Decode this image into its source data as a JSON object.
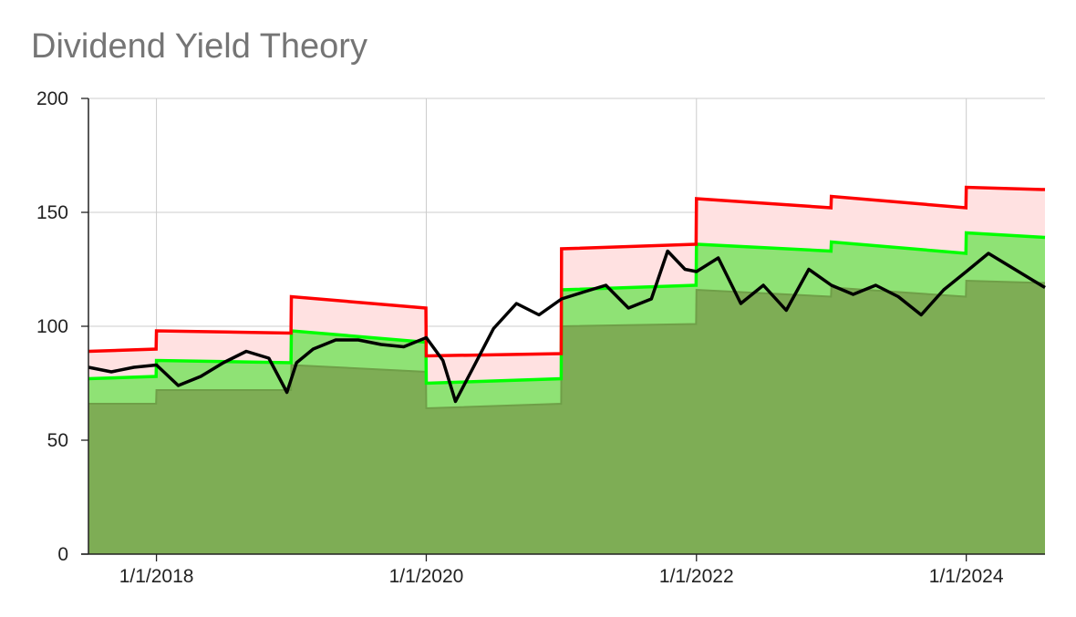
{
  "chart_data": {
    "type": "area",
    "title": "Dividend Yield Theory",
    "xlabel": "",
    "ylabel": "",
    "ylim": [
      0,
      200
    ],
    "y_ticks": [
      0,
      50,
      100,
      150,
      200
    ],
    "x_range": [
      "2017-07-01",
      "2024-08-01"
    ],
    "x_ticks": [
      {
        "date": "2018-01-01",
        "label": "1/1/2018"
      },
      {
        "date": "2020-01-01",
        "label": "1/1/2020"
      },
      {
        "date": "2022-01-01",
        "label": "1/1/2022"
      },
      {
        "date": "2024-01-01",
        "label": "1/1/2024"
      }
    ],
    "grid": true,
    "colors": {
      "overvalued_line": "#ff0000",
      "overvalued_fill": "#ffe1e1",
      "fair_line": "#00ff00",
      "fair_fill": "#8fe275",
      "undervalued_fill": "#7ead55",
      "undervalued_line": "#6f9f48",
      "price_line": "#000000",
      "grid": "#cccccc"
    },
    "series": [
      {
        "key": "overvalued",
        "x": [
          "2017-07-01",
          "2017-12-31",
          "2018-01-01",
          "2018-12-31",
          "2019-01-01",
          "2019-12-31",
          "2020-01-01",
          "2020-12-31",
          "2021-01-01",
          "2021-12-31",
          "2022-01-01",
          "2022-12-31",
          "2023-01-01",
          "2023-12-31",
          "2024-01-01",
          "2024-08-01"
        ],
        "values": [
          89,
          90,
          98,
          97,
          113,
          108,
          87,
          88,
          134,
          136,
          156,
          152,
          157,
          152,
          161,
          160
        ]
      },
      {
        "key": "fair",
        "x": [
          "2017-07-01",
          "2017-12-31",
          "2018-01-01",
          "2018-12-31",
          "2019-01-01",
          "2019-12-31",
          "2020-01-01",
          "2020-12-31",
          "2021-01-01",
          "2021-12-31",
          "2022-01-01",
          "2022-12-31",
          "2023-01-01",
          "2023-12-31",
          "2024-01-01",
          "2024-08-01"
        ],
        "values": [
          77,
          78,
          85,
          84,
          98,
          93,
          75,
          77,
          116,
          118,
          136,
          133,
          137,
          132,
          141,
          139
        ]
      },
      {
        "key": "undervalued",
        "x": [
          "2017-07-01",
          "2017-12-31",
          "2018-01-01",
          "2018-12-31",
          "2019-01-01",
          "2019-12-31",
          "2020-01-01",
          "2020-12-31",
          "2021-01-01",
          "2021-12-31",
          "2022-01-01",
          "2022-12-31",
          "2023-01-01",
          "2023-12-31",
          "2024-01-01",
          "2024-08-01"
        ],
        "values": [
          66,
          66,
          72,
          72,
          83,
          80,
          64,
          66,
          100,
          101,
          116,
          113,
          117,
          113,
          120,
          119
        ]
      },
      {
        "key": "price",
        "x": [
          "2017-07-01",
          "2017-09-01",
          "2017-11-01",
          "2018-01-01",
          "2018-03-01",
          "2018-05-01",
          "2018-07-01",
          "2018-09-01",
          "2018-11-01",
          "2018-12-20",
          "2019-01-15",
          "2019-03-01",
          "2019-05-01",
          "2019-07-01",
          "2019-09-01",
          "2019-11-01",
          "2020-01-01",
          "2020-02-15",
          "2020-03-20",
          "2020-05-01",
          "2020-07-01",
          "2020-09-01",
          "2020-11-01",
          "2021-01-01",
          "2021-03-01",
          "2021-05-01",
          "2021-07-01",
          "2021-09-01",
          "2021-10-15",
          "2021-12-01",
          "2022-01-01",
          "2022-03-01",
          "2022-05-01",
          "2022-07-01",
          "2022-09-01",
          "2022-11-01",
          "2023-01-01",
          "2023-03-01",
          "2023-05-01",
          "2023-07-01",
          "2023-09-01",
          "2023-11-01",
          "2024-01-01",
          "2024-03-01",
          "2024-05-01",
          "2024-07-01",
          "2024-08-01"
        ],
        "values": [
          82,
          80,
          82,
          83,
          74,
          78,
          84,
          89,
          86,
          71,
          84,
          90,
          94,
          94,
          92,
          91,
          95,
          85,
          67,
          80,
          99,
          110,
          105,
          112,
          115,
          118,
          108,
          112,
          133,
          125,
          124,
          130,
          110,
          118,
          107,
          125,
          118,
          114,
          118,
          113,
          105,
          116,
          124,
          132,
          126,
          120,
          117
        ]
      }
    ]
  }
}
